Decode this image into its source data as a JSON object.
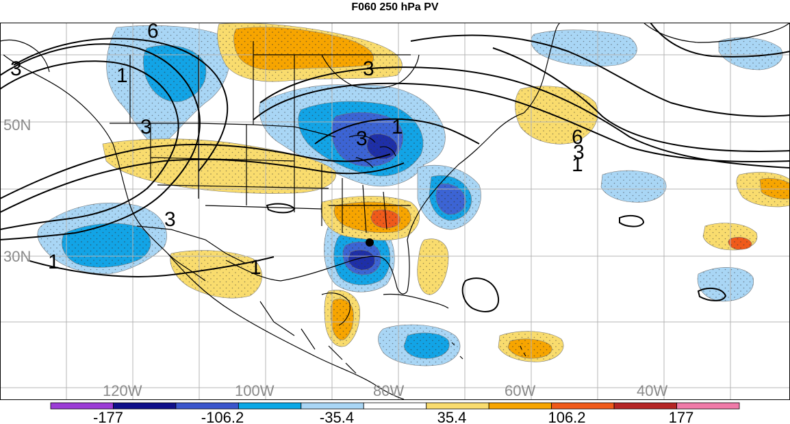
{
  "title": "F060 250 hPa PV",
  "latitude_labels": [
    "50N",
    "30N"
  ],
  "longitude_labels": [
    "120W",
    "100W",
    "80W",
    "60W",
    "40W"
  ],
  "contour_labels": [
    "6",
    "1",
    "3",
    "3",
    "1",
    "3",
    "3",
    "6",
    "3",
    "1",
    "3",
    "1",
    "1"
  ],
  "colorbar": {
    "tick_labels": [
      "-177",
      "-106.2",
      "-35.4",
      "35.4",
      "106.2",
      "177"
    ],
    "colors": [
      "#9b3cd6",
      "#10108a",
      "#3a55cc",
      "#0aa8e6",
      "#a9d6f5",
      "#ffffff",
      "#f9dc6e",
      "#f7a500",
      "#f05a1a",
      "#b52424",
      "#f07aa8"
    ]
  },
  "colors": {
    "dark_blue": "#1e2fa8",
    "mid_blue": "#3c64d4",
    "cyan": "#12a4e6",
    "light_blue": "#a9d6f5",
    "light_yellow": "#f9dc6e",
    "orange": "#f7a500",
    "red_orange": "#f05a1a",
    "grid": "#b4b4b4"
  }
}
